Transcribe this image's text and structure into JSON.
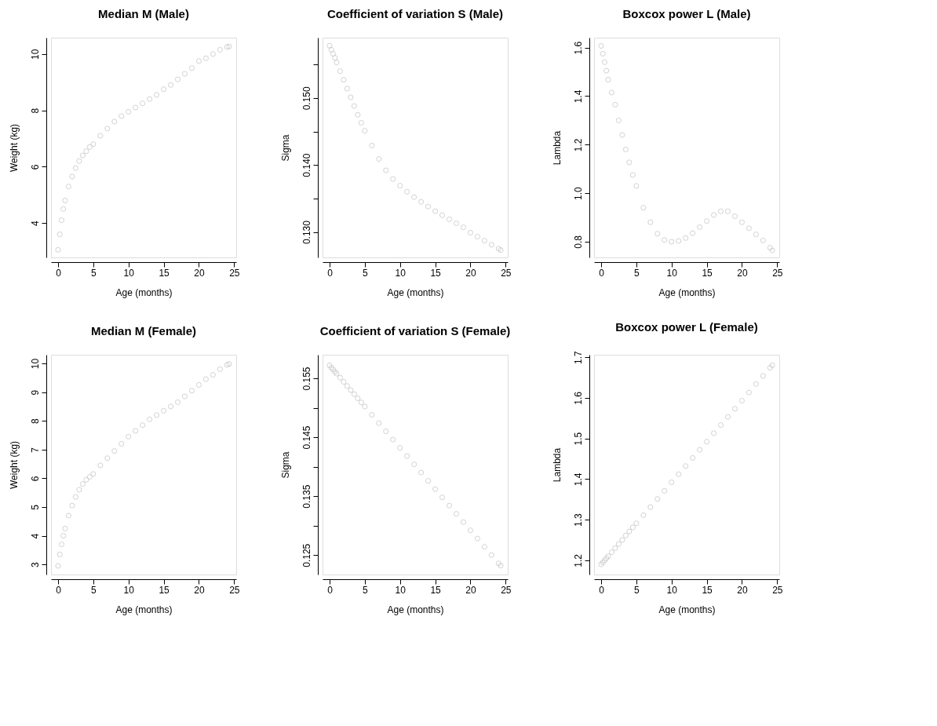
{
  "chart_data": [
    {
      "type": "scatter",
      "title": "Median M (Male)",
      "xlabel": "Age (months)",
      "ylabel": "Weight (kg)",
      "marker": "circle",
      "grid": false,
      "legend": false,
      "x": [
        0,
        0.25,
        0.5,
        0.75,
        1,
        1.5,
        2,
        2.5,
        3,
        3.5,
        4,
        4.5,
        5,
        6,
        7,
        8,
        9,
        10,
        11,
        12,
        13,
        14,
        15,
        16,
        17,
        18,
        19,
        20,
        21,
        22,
        23,
        24,
        24.3
      ],
      "xlim": [
        -1,
        25.3
      ],
      "xticks": [
        0,
        5,
        10,
        15,
        20,
        25
      ],
      "ylim": [
        2.78,
        10.58
      ],
      "yticks": [
        4,
        6,
        8,
        10
      ],
      "series": [
        {
          "color": "#bebebe",
          "values": [
            3.05,
            3.6,
            4.1,
            4.5,
            4.8,
            5.3,
            5.65,
            5.95,
            6.2,
            6.4,
            6.55,
            6.7,
            6.8,
            7.1,
            7.35,
            7.6,
            7.8,
            7.95,
            8.1,
            8.25,
            8.4,
            8.55,
            8.75,
            8.9,
            9.1,
            9.3,
            9.5,
            9.75,
            9.85,
            10.0,
            10.15,
            10.25,
            10.27
          ]
        }
      ]
    },
    {
      "type": "scatter",
      "title": "Coefficient of variation S (Male)",
      "xlabel": "Age (months)",
      "ylabel": "Sigma",
      "marker": "circle",
      "grid": false,
      "legend": false,
      "x": [
        0,
        0.25,
        0.5,
        0.75,
        1,
        1.5,
        2,
        2.5,
        3,
        3.5,
        4,
        4.5,
        5,
        6,
        7,
        8,
        9,
        10,
        11,
        12,
        13,
        14,
        15,
        16,
        17,
        18,
        19,
        20,
        21,
        22,
        23,
        24,
        24.3
      ],
      "xlim": [
        -1,
        25.3
      ],
      "xticks": [
        0,
        5,
        10,
        15,
        20,
        25
      ],
      "ylim": [
        0.1262,
        0.159
      ],
      "yticks": [
        {
          "value": 0.13,
          "label": "0.130"
        },
        {
          "value": 0.135,
          "label": null
        },
        {
          "value": 0.14,
          "label": "0.140"
        },
        {
          "value": 0.145,
          "label": null
        },
        {
          "value": 0.15,
          "label": "0.150"
        },
        {
          "value": 0.155,
          "label": null
        }
      ],
      "series": [
        {
          "color": "#bebebe",
          "values": [
            0.1578,
            0.1572,
            0.1566,
            0.156,
            0.1553,
            0.154,
            0.1527,
            0.1514,
            0.1501,
            0.1488,
            0.1475,
            0.1463,
            0.1451,
            0.1429,
            0.1409,
            0.1392,
            0.1379,
            0.1369,
            0.136,
            0.1352,
            0.1345,
            0.1338,
            0.1331,
            0.1325,
            0.1319,
            0.1313,
            0.1307,
            0.1299,
            0.1293,
            0.1287,
            0.1281,
            0.1275,
            0.1273
          ]
        }
      ]
    },
    {
      "type": "scatter",
      "title": "Boxcox power L (Male)",
      "xlabel": "Age (months)",
      "ylabel": "Lambda",
      "marker": "circle",
      "grid": false,
      "legend": false,
      "x": [
        0,
        0.25,
        0.5,
        0.75,
        1,
        1.5,
        2,
        2.5,
        3,
        3.5,
        4,
        4.5,
        5,
        6,
        7,
        8,
        9,
        10,
        11,
        12,
        13,
        14,
        15,
        16,
        17,
        18,
        19,
        20,
        21,
        22,
        23,
        24,
        24.3
      ],
      "xlim": [
        -1,
        25.3
      ],
      "xticks": [
        0,
        5,
        10,
        15,
        20,
        25
      ],
      "ylim": [
        0.735,
        1.641
      ],
      "yticks": [
        0.8,
        {
          "value": 1.0,
          "label": "1.0"
        },
        1.2,
        1.4,
        1.6
      ],
      "series": [
        {
          "color": "#bebebe",
          "values": [
            1.607,
            1.575,
            1.54,
            1.505,
            1.468,
            1.415,
            1.365,
            1.3,
            1.24,
            1.18,
            1.127,
            1.075,
            1.03,
            0.94,
            0.88,
            0.833,
            0.807,
            0.8,
            0.803,
            0.815,
            0.835,
            0.86,
            0.885,
            0.91,
            0.925,
            0.925,
            0.905,
            0.88,
            0.855,
            0.83,
            0.805,
            0.775,
            0.764
          ]
        }
      ]
    },
    {
      "type": "scatter",
      "title": "Median M (Female)",
      "xlabel": "Age (months)",
      "ylabel": "Weight (kg)",
      "marker": "circle",
      "grid": false,
      "legend": false,
      "x": [
        0,
        0.25,
        0.5,
        0.75,
        1,
        1.5,
        2,
        2.5,
        3,
        3.5,
        4,
        4.5,
        5,
        6,
        7,
        8,
        9,
        10,
        11,
        12,
        13,
        14,
        15,
        16,
        17,
        18,
        19,
        20,
        21,
        22,
        23,
        24,
        24.3
      ],
      "xlim": [
        -1,
        25.3
      ],
      "xticks": [
        0,
        5,
        10,
        15,
        20,
        25
      ],
      "ylim": [
        2.65,
        10.3
      ],
      "yticks": [
        3,
        4,
        5,
        6,
        7,
        8,
        9,
        10
      ],
      "series": [
        {
          "color": "#bebebe",
          "values": [
            2.95,
            3.35,
            3.7,
            4.0,
            4.25,
            4.7,
            5.05,
            5.35,
            5.6,
            5.8,
            5.95,
            6.05,
            6.15,
            6.45,
            6.7,
            6.95,
            7.2,
            7.45,
            7.65,
            7.85,
            8.05,
            8.2,
            8.35,
            8.5,
            8.65,
            8.85,
            9.05,
            9.25,
            9.45,
            9.6,
            9.8,
            9.95,
            9.98
          ]
        }
      ]
    },
    {
      "type": "scatter",
      "title": "Coefficient of variation S (Female)",
      "xlabel": "Age (months)",
      "ylabel": "Sigma",
      "marker": "circle",
      "grid": false,
      "legend": false,
      "x": [
        0,
        0.25,
        0.5,
        0.75,
        1,
        1.5,
        2,
        2.5,
        3,
        3.5,
        4,
        4.5,
        5,
        6,
        7,
        8,
        9,
        10,
        11,
        12,
        13,
        14,
        15,
        16,
        17,
        18,
        19,
        20,
        21,
        22,
        23,
        24,
        24.3
      ],
      "xlim": [
        -1,
        25.3
      ],
      "xticks": [
        0,
        5,
        10,
        15,
        20,
        25
      ],
      "ylim": [
        0.1217,
        0.159
      ],
      "yticks": [
        0.125,
        {
          "value": 0.13,
          "label": null
        },
        0.135,
        {
          "value": 0.14,
          "label": null
        },
        0.145,
        {
          "value": 0.15,
          "label": null
        },
        0.155
      ],
      "series": [
        {
          "color": "#bebebe",
          "values": [
            0.1572,
            0.1568,
            0.1565,
            0.1561,
            0.1558,
            0.1551,
            0.1544,
            0.1537,
            0.153,
            0.1523,
            0.1516,
            0.1509,
            0.1502,
            0.1488,
            0.1474,
            0.146,
            0.1446,
            0.1432,
            0.1418,
            0.1404,
            0.139,
            0.1376,
            0.1362,
            0.1348,
            0.1334,
            0.132,
            0.1306,
            0.1292,
            0.1278,
            0.1264,
            0.125,
            0.1236,
            0.1232
          ]
        }
      ]
    },
    {
      "type": "scatter",
      "title": "Boxcox power L (Female)",
      "xlabel": "Age (months)",
      "ylabel": "Lambda",
      "marker": "circle",
      "grid": false,
      "legend": false,
      "x": [
        0,
        0.25,
        0.5,
        0.75,
        1,
        1.5,
        2,
        2.5,
        3,
        3.5,
        4,
        4.5,
        5,
        6,
        7,
        8,
        9,
        10,
        11,
        12,
        13,
        14,
        15,
        16,
        17,
        18,
        19,
        20,
        21,
        22,
        23,
        24,
        24.3
      ],
      "xlim": [
        -1,
        25.3
      ],
      "xticks": [
        0,
        5,
        10,
        15,
        20,
        25
      ],
      "ylim": [
        1.165,
        1.706
      ],
      "yticks": [
        1.2,
        1.3,
        1.4,
        1.5,
        1.6,
        1.7
      ],
      "series": [
        {
          "color": "#bebebe",
          "values": [
            1.19,
            1.195,
            1.2,
            1.205,
            1.21,
            1.22,
            1.23,
            1.24,
            1.25,
            1.261,
            1.271,
            1.281,
            1.291,
            1.311,
            1.331,
            1.351,
            1.371,
            1.392,
            1.412,
            1.432,
            1.452,
            1.472,
            1.492,
            1.513,
            1.533,
            1.553,
            1.573,
            1.593,
            1.613,
            1.634,
            1.654,
            1.674,
            1.68
          ]
        }
      ]
    }
  ]
}
